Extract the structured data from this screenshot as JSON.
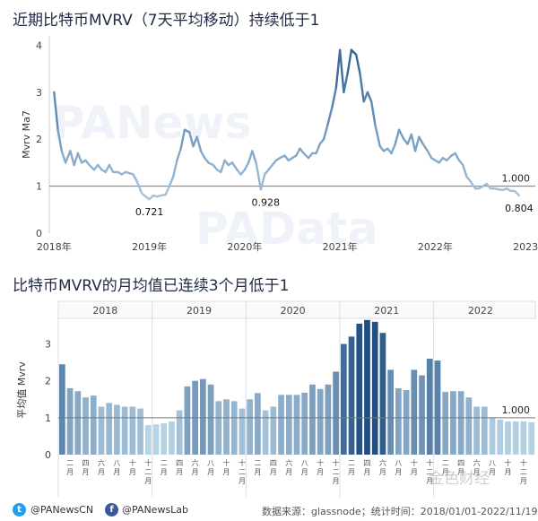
{
  "chart_data": [
    {
      "type": "line",
      "title": "近期比特币MVRV（7天平均移动）持续低于1",
      "ylabel": "Mvrv Ma7",
      "ylim": [
        0,
        4.2
      ],
      "yticks": [
        "0",
        "1",
        "2",
        "3",
        "4"
      ],
      "xticks": [
        "2018年",
        "2019年",
        "2020年",
        "2021年",
        "2022年",
        "2023年"
      ],
      "reference_line": {
        "value": 1.0,
        "label": "1.000"
      },
      "annotations": [
        {
          "label": "0.721",
          "x": 2019.0,
          "y": 0.721
        },
        {
          "label": "0.928",
          "x": 2020.22,
          "y": 0.928
        },
        {
          "label": "0.804",
          "x": 2022.88,
          "y": 0.804
        }
      ],
      "series": [
        {
          "x": [
            2018.0,
            2018.04,
            2018.08,
            2018.12,
            2018.17,
            2018.21,
            2018.25,
            2018.29,
            2018.33,
            2018.37,
            2018.42,
            2018.46,
            2018.5,
            2018.54,
            2018.58,
            2018.62,
            2018.67,
            2018.71,
            2018.75,
            2018.79,
            2018.83,
            2018.87,
            2018.92,
            2018.96,
            2019.0,
            2019.04,
            2019.08,
            2019.12,
            2019.17,
            2019.21,
            2019.25,
            2019.29,
            2019.33,
            2019.37,
            2019.42,
            2019.46,
            2019.5,
            2019.54,
            2019.58,
            2019.62,
            2019.67,
            2019.71,
            2019.75,
            2019.79,
            2019.83,
            2019.87,
            2019.92,
            2019.96,
            2020.0,
            2020.04,
            2020.08,
            2020.12,
            2020.17,
            2020.21,
            2020.25,
            2020.29,
            2020.33,
            2020.37,
            2020.42,
            2020.46,
            2020.5,
            2020.54,
            2020.58,
            2020.62,
            2020.67,
            2020.71,
            2020.75,
            2020.79,
            2020.83,
            2020.87,
            2020.92,
            2020.96,
            2021.0,
            2021.04,
            2021.08,
            2021.12,
            2021.17,
            2021.21,
            2021.25,
            2021.29,
            2021.33,
            2021.37,
            2021.42,
            2021.46,
            2021.5,
            2021.54,
            2021.58,
            2021.62,
            2021.67,
            2021.71,
            2021.75,
            2021.79,
            2021.83,
            2021.87,
            2021.92,
            2021.96,
            2022.0,
            2022.04,
            2022.08,
            2022.12,
            2022.17,
            2022.21,
            2022.25,
            2022.29,
            2022.33,
            2022.37,
            2022.42,
            2022.46,
            2022.5,
            2022.54,
            2022.58,
            2022.62,
            2022.67,
            2022.71,
            2022.75,
            2022.79,
            2022.83,
            2022.88
          ],
          "values": [
            3.0,
            2.2,
            1.75,
            1.5,
            1.75,
            1.45,
            1.7,
            1.5,
            1.55,
            1.45,
            1.35,
            1.45,
            1.35,
            1.3,
            1.45,
            1.3,
            1.3,
            1.25,
            1.3,
            1.28,
            1.25,
            1.1,
            0.85,
            0.78,
            0.72,
            0.8,
            0.78,
            0.8,
            0.82,
            1.0,
            1.2,
            1.55,
            1.8,
            2.2,
            2.15,
            1.85,
            2.05,
            1.75,
            1.6,
            1.5,
            1.45,
            1.35,
            1.3,
            1.55,
            1.45,
            1.5,
            1.35,
            1.25,
            1.35,
            1.5,
            1.75,
            1.5,
            0.93,
            1.25,
            1.35,
            1.45,
            1.55,
            1.6,
            1.65,
            1.55,
            1.6,
            1.65,
            1.8,
            1.7,
            1.6,
            1.7,
            1.7,
            1.9,
            2.0,
            2.3,
            2.7,
            3.1,
            3.9,
            3.0,
            3.4,
            3.9,
            3.8,
            3.4,
            2.8,
            3.0,
            2.8,
            2.3,
            1.85,
            1.75,
            1.8,
            1.7,
            1.9,
            2.2,
            2.0,
            1.9,
            2.1,
            1.75,
            2.05,
            1.9,
            1.75,
            1.6,
            1.55,
            1.5,
            1.6,
            1.55,
            1.65,
            1.7,
            1.55,
            1.45,
            1.2,
            1.1,
            0.95,
            0.95,
            1.0,
            1.05,
            0.95,
            0.95,
            0.93,
            0.92,
            0.95,
            0.9,
            0.9,
            0.804
          ]
        }
      ]
    },
    {
      "type": "bar",
      "title": "比特币MVRV的月均值已连续3个月低于1",
      "ylabel": "平均值 Mvrv",
      "ylim": [
        0,
        3.5
      ],
      "yticks": [
        "0",
        "1",
        "2",
        "3"
      ],
      "years": [
        "2018",
        "2019",
        "2020",
        "2021",
        "2022"
      ],
      "reference_line": {
        "value": 1.0,
        "label": "1.000"
      },
      "month_labels": [
        "二月",
        "四月",
        "六月",
        "八月",
        "十月",
        "十二月"
      ],
      "values": [
        2.45,
        1.8,
        1.72,
        1.55,
        1.6,
        1.3,
        1.4,
        1.35,
        1.3,
        1.3,
        1.25,
        0.8,
        0.82,
        0.85,
        0.9,
        1.2,
        1.85,
        2.0,
        2.05,
        1.9,
        1.45,
        1.5,
        1.45,
        1.25,
        1.5,
        1.67,
        1.2,
        1.3,
        1.62,
        1.62,
        1.62,
        1.68,
        1.9,
        1.78,
        1.9,
        2.25,
        3.0,
        3.2,
        3.55,
        3.65,
        3.6,
        3.3,
        2.3,
        1.8,
        1.75,
        2.3,
        2.15,
        2.6,
        2.55,
        1.7,
        1.72,
        1.72,
        1.55,
        1.3,
        1.3,
        1.0,
        0.95,
        0.9,
        0.9,
        0.9,
        0.88
      ]
    }
  ],
  "footer": {
    "twitter_handle": "@PANewsCN",
    "facebook_handle": "@PANewsLab",
    "source": "数据来源：glassnode；统计时间：2018/01/01-2022/11/19",
    "twitter_icon": "twitter-icon",
    "facebook_icon": "facebook-icon"
  },
  "watermarks": {
    "main": "PANews",
    "data": "PAData",
    "brand": "金色财经"
  },
  "colors": {
    "line_light": "#a9c8df",
    "line_dark": "#2f5f95",
    "bar_light": "#b8d4e6",
    "bar_dark": "#1f4d82",
    "ref_line": "#777777"
  }
}
